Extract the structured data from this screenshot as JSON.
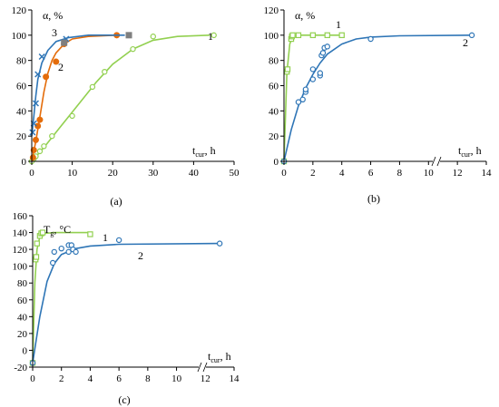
{
  "chart_data": [
    {
      "type": "line",
      "caption": "(a)",
      "xlabel": "t",
      "xlabel_sub": "cur",
      "xlabel_unit": ", h",
      "ylabel": "α, %",
      "xlim": [
        0,
        50
      ],
      "ylim": [
        0,
        120
      ],
      "xticks": [
        "0",
        "10",
        "20",
        "30",
        "40",
        "50"
      ],
      "yticks": [
        "0",
        "20",
        "40",
        "60",
        "80",
        "100",
        "120"
      ],
      "series": [
        {
          "name": "1",
          "color": "#92D050",
          "marker": "circle-open",
          "x": [
            0,
            0.5,
            1,
            2,
            3,
            5,
            10,
            15,
            18,
            25,
            30,
            45
          ],
          "y": [
            0,
            2,
            4,
            8,
            12,
            20,
            36,
            59,
            71,
            89,
            99,
            100
          ],
          "curve": [
            [
              0,
              0
            ],
            [
              3,
              11
            ],
            [
              7,
              27
            ],
            [
              12,
              47
            ],
            [
              16,
              63
            ],
            [
              20,
              77
            ],
            [
              25,
              89
            ],
            [
              30,
              96
            ],
            [
              36,
              99
            ],
            [
              44,
              100
            ]
          ]
        },
        {
          "name": "2",
          "color": "#E46C0A",
          "marker": "circle-filled",
          "x": [
            0.3,
            0.5,
            1,
            1.5,
            2,
            3.5,
            6,
            8,
            21
          ],
          "y": [
            3,
            9,
            17,
            28,
            33,
            67,
            79,
            93,
            100
          ],
          "curve": [
            [
              0,
              0
            ],
            [
              1,
              16
            ],
            [
              2,
              35
            ],
            [
              3,
              55
            ],
            [
              4,
              70
            ],
            [
              5,
              80
            ],
            [
              6,
              86
            ],
            [
              8,
              93
            ],
            [
              10,
              97
            ],
            [
              14,
              99
            ],
            [
              21,
              100
            ]
          ]
        },
        {
          "name": "3",
          "color": "#2E75B6",
          "marker": "x",
          "x": [
            0.2,
            0.5,
            1,
            1.5,
            2.5,
            8.5
          ],
          "y": [
            23,
            30,
            46,
            69,
            83,
            97
          ],
          "curve": [
            [
              0,
              20
            ],
            [
              0.5,
              35
            ],
            [
              1,
              52
            ],
            [
              1.5,
              65
            ],
            [
              2.5,
              78
            ],
            [
              4,
              88
            ],
            [
              6,
              95
            ],
            [
              9,
              98
            ],
            [
              14,
              100
            ],
            [
              23,
              100
            ]
          ]
        },
        {
          "name": "",
          "color": "#7F7F7F",
          "marker": "square-filled",
          "x": [
            8,
            24
          ],
          "y": [
            94,
            100
          ]
        }
      ]
    },
    {
      "type": "line",
      "caption": "(b)",
      "xlabel": "t",
      "xlabel_sub": "cur",
      "xlabel_unit": ", h",
      "ylabel": "α, %",
      "xlim": [
        0,
        14
      ],
      "ylim": [
        0,
        120
      ],
      "xticks": [
        "0",
        "2",
        "4",
        "6",
        "8",
        "10",
        "12",
        "14"
      ],
      "yticks": [
        "0",
        "20",
        "40",
        "60",
        "80",
        "100",
        "120"
      ],
      "series": [
        {
          "name": "1",
          "color": "#92D050",
          "marker": "square-open",
          "x": [
            0,
            0.2,
            0.25,
            0.5,
            0.55,
            0.6,
            1,
            2,
            3,
            4
          ],
          "y": [
            0,
            71,
            73,
            97,
            99,
            100,
            100,
            100,
            100,
            100
          ],
          "curve": [
            [
              0,
              0
            ],
            [
              0.2,
              70
            ],
            [
              0.4,
              93
            ],
            [
              0.6,
              99
            ],
            [
              1,
              100
            ],
            [
              4,
              100
            ]
          ]
        },
        {
          "name": "2",
          "color": "#2E75B6",
          "marker": "circle-open",
          "x": [
            0,
            1,
            1.3,
            1.5,
            1.5,
            2,
            2,
            2.5,
            2.5,
            2.6,
            2.7,
            2.8,
            3,
            6,
            13
          ],
          "y": [
            0,
            47,
            49,
            55,
            57,
            65,
            73,
            68,
            70,
            84,
            86,
            90,
            91,
            97,
            100
          ],
          "curve": [
            [
              0,
              0
            ],
            [
              0.5,
              25
            ],
            [
              1,
              44
            ],
            [
              1.5,
              58
            ],
            [
              2,
              69
            ],
            [
              2.5,
              78
            ],
            [
              3,
              85
            ],
            [
              4,
              93
            ],
            [
              5,
              97
            ],
            [
              6,
              98.5
            ],
            [
              8,
              99.5
            ],
            [
              13,
              100
            ]
          ]
        }
      ]
    },
    {
      "type": "line",
      "caption": "(c)",
      "xlabel": "t",
      "xlabel_sub": "cur",
      "xlabel_unit": ", h",
      "ylabel": "T",
      "ylabel_sub": "g",
      "ylabel_unit": ", °C",
      "xlim": [
        0,
        14
      ],
      "ylim": [
        -20,
        160
      ],
      "xticks": [
        "0",
        "2",
        "4",
        "6",
        "8",
        "10",
        "12",
        "14"
      ],
      "yticks": [
        "-20",
        "0",
        "20",
        "40",
        "60",
        "80",
        "100",
        "120",
        "140",
        "160"
      ],
      "series": [
        {
          "name": "1",
          "color": "#92D050",
          "marker": "square-open",
          "x": [
            0,
            0.2,
            0.25,
            0.3,
            0.5,
            0.6,
            0.7,
            4
          ],
          "y": [
            -15,
            108,
            111,
            127,
            136,
            139,
            140,
            138
          ],
          "curve": [
            [
              0,
              -15
            ],
            [
              0.15,
              80
            ],
            [
              0.3,
              120
            ],
            [
              0.5,
              135
            ],
            [
              0.8,
              139
            ],
            [
              1.5,
              140
            ],
            [
              4,
              140
            ]
          ]
        },
        {
          "name": "2",
          "color": "#2E75B6",
          "marker": "circle-open",
          "x": [
            0,
            1.4,
            1.5,
            2,
            2.5,
            2.5,
            2.7,
            2.8,
            3,
            6,
            13
          ],
          "y": [
            -15,
            104,
            117,
            121,
            117,
            125,
            125,
            120,
            117,
            131,
            127
          ],
          "curve": [
            [
              0,
              -15
            ],
            [
              0.5,
              40
            ],
            [
              1,
              82
            ],
            [
              1.5,
              103
            ],
            [
              2,
              114
            ],
            [
              3,
              121
            ],
            [
              4,
              124
            ],
            [
              6,
              126
            ],
            [
              13,
              127
            ]
          ]
        }
      ]
    }
  ]
}
